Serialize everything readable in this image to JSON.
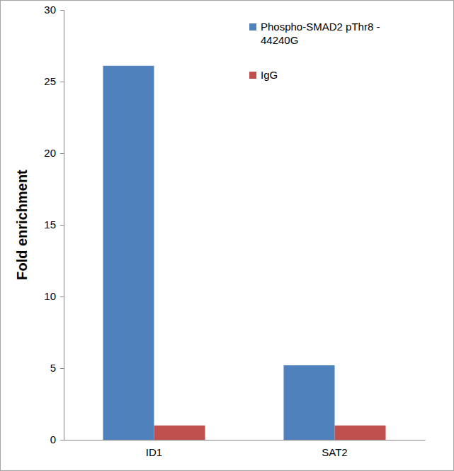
{
  "chart_data": {
    "type": "bar",
    "y_label": "Fold enrichment",
    "categories": [
      "ID1",
      "SAT2"
    ],
    "series": [
      {
        "name": "Phospho-SMAD2 pThr8 - 44240G",
        "color": "#4f81bd",
        "values": [
          26.1,
          5.2
        ]
      },
      {
        "name": "IgG",
        "color": "#c0504d",
        "values": [
          1.0,
          1.0
        ]
      }
    ],
    "ylim": [
      0,
      30
    ],
    "yticks": [
      0,
      5,
      10,
      15,
      20,
      25,
      30
    ],
    "grid": false,
    "legend": "top-right"
  }
}
